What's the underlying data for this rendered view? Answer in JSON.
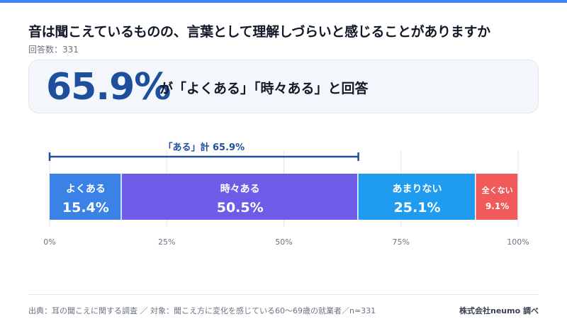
{
  "header": {
    "title": "音は聞こえているものの、言葉として理解しづらいと感じることがありますか",
    "respondents": "回答数：331"
  },
  "summary": {
    "value": "65.9%",
    "text": "が「よくある」「時々ある」と回答"
  },
  "chart_data": {
    "type": "bar",
    "orientation": "horizontal-stacked-100",
    "xlim": [
      0,
      100
    ],
    "ticks": [
      "0%",
      "25%",
      "50%",
      "75%",
      "100%"
    ],
    "tick_values": [
      0,
      25,
      50,
      75,
      100
    ],
    "grid": true,
    "segments": [
      {
        "name": "よくある",
        "value": 15.4,
        "label": "15.4%",
        "color": "#3b82e6"
      },
      {
        "name": "時々ある",
        "value": 50.5,
        "label": "50.5%",
        "color": "#6c5ce7"
      },
      {
        "name": "あまりない",
        "value": 25.1,
        "label": "25.1%",
        "color": "#1f9cf0"
      },
      {
        "name": "全くない",
        "value": 9.1,
        "label": "9.1%",
        "color": "#f05a5a"
      }
    ],
    "annotation": {
      "label": "「ある」計 65.9%",
      "from": 0,
      "to": 65.9,
      "color": "#1e4f9c"
    }
  },
  "footer": {
    "source": "出典：耳の聞こえに関する調査 ／ 対象：聞こえ方に変化を感じている60〜69歳の就業者／n=331",
    "credit": "株式会社neumo 調べ"
  }
}
